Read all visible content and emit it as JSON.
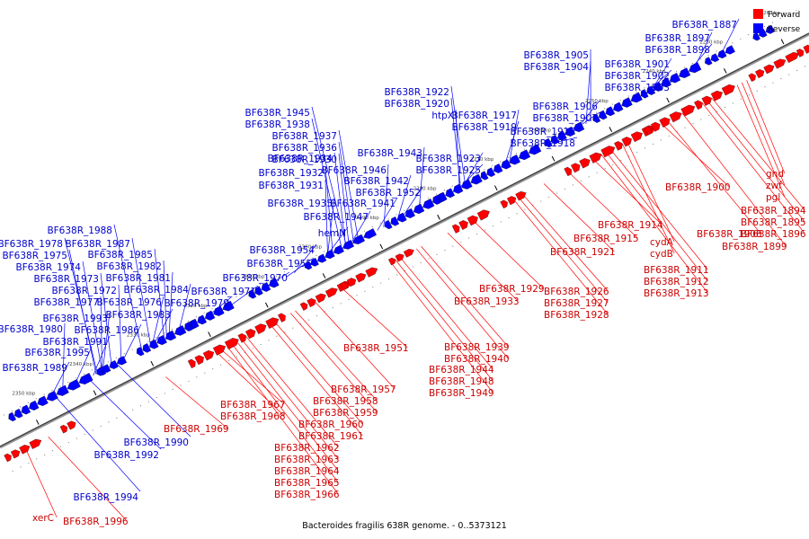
{
  "title": "Bacteroides fragilis 638R genome. - 0..5373121",
  "legend": {
    "forward_label": "Forward",
    "reverse_label": "Reverse",
    "forward_color": "#ff0000",
    "reverse_color": "#0000ff"
  },
  "ticks": [
    "2226 kbp",
    "2230 kbp",
    "2240 kbp",
    "2250 kbp",
    "2260 kbp",
    "2270 kbp",
    "2280 kbp",
    "2290 kbp",
    "2300 kbp",
    "2310 kbp",
    "2320 kbp",
    "2330 kbp",
    "2340 kbp",
    "2350 kbp"
  ],
  "reverse_genes": [
    "BF638R_1887",
    "BF638R_1897",
    "BF638R_1898",
    "BF638R_1901",
    "BF638R_1902",
    "BF638R_1903",
    "BF638R_1905",
    "BF638R_1904",
    "BF638R_1906",
    "BF638R_1907",
    "BF638R_1916",
    "BF638R_1918",
    "BF638R_1922",
    "BF638R_1920",
    "htpX",
    "BF638R_1917",
    "BF638R_1919",
    "BF638R_1923",
    "BF638R_1925",
    "BF638R_1945",
    "BF638R_1938",
    "BF638R_1937",
    "BF638R_1936",
    "BF638R_1930",
    "BF638R_1943",
    "BF638R_1934",
    "BF638R_1946",
    "BF638R_1932",
    "BF638R_1942",
    "BF638R_1931",
    "BF638R_1952",
    "BF638R_1935",
    "BF638R_1941",
    "BF638R_1947",
    "hemN",
    "BF638R_1954",
    "BF638R_1955",
    "BF638R_1970",
    "BF638R_1971",
    "BF638R_1979",
    "BF638R_1988",
    "BF638R_1978",
    "BF638R_1987",
    "BF638R_1975",
    "BF638R_1985",
    "BF638R_1974",
    "BF638R_1982",
    "BF638R_1973",
    "BF638R_1981",
    "BF638R_1972",
    "BF638R_1984",
    "BF638R_1977",
    "BF638R_1976",
    "BF638R_1983",
    "BF638R_1993",
    "BF638R_1980",
    "BF638R_1986",
    "BF638R_1991",
    "BF638R_1995",
    "BF638R_1989",
    "BF638R_1990",
    "BF638R_1992",
    "BF638R_1994"
  ],
  "forward_genes": [
    "gnd",
    "zwf",
    "pgl",
    "BF638R_1894",
    "BF638R_1895",
    "BF638R_1896",
    "BF638R_1899",
    "BF638R_1900",
    "BF638R_1908",
    "BF638R_1914",
    "BF638R_1915",
    "cydA",
    "cydB",
    "BF638R_1911",
    "BF638R_1912",
    "BF638R_1913",
    "BF638R_1921",
    "BF638R_1926",
    "BF638R_1927",
    "BF638R_1928",
    "BF638R_1929",
    "BF638R_1933",
    "BF638R_1939",
    "BF638R_1940",
    "BF638R_1944",
    "BF638R_1948",
    "BF638R_1949",
    "BF638R_1951",
    "BF638R_1957",
    "BF638R_1958",
    "BF638R_1959",
    "BF638R_1960",
    "BF638R_1961",
    "BF638R_1962",
    "BF638R_1963",
    "BF638R_1964",
    "BF638R_1965",
    "BF638R_1966",
    "BF638R_1967",
    "BF638R_1968",
    "BF638R_1969",
    "xerC",
    "BF638R_1996"
  ]
}
